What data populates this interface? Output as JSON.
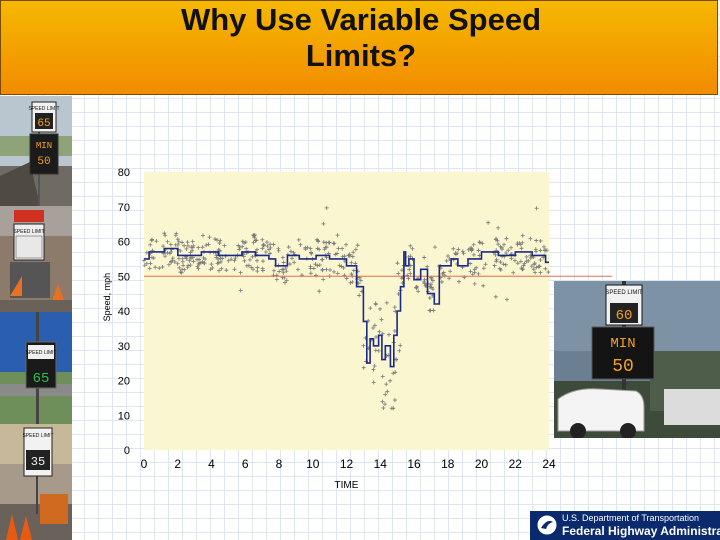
{
  "slide": {
    "title_line1": "Why Use Variable Speed",
    "title_line2": "Limits?"
  },
  "photos": {
    "sign1_top": "SPEED LIMIT",
    "sign1_speed": "65",
    "sign1_min_label": "MIN",
    "sign1_min": "50",
    "sign2_top": "SPEED LIMIT",
    "sign3_top": "SPEED LIMIT",
    "sign3_speed": "65",
    "sign4_top": "SPEED LIMIT",
    "sign4_speed": "35",
    "right_top": "SPEED LIMIT",
    "right_speed": "60",
    "right_min_label": "MIN",
    "right_min": "50"
  },
  "footer": {
    "line1": "U.S. Department of Transportation",
    "line2": "Federal Highway Administration"
  },
  "chart_data": {
    "type": "scatter",
    "title": "",
    "xlabel": "TIME",
    "ylabel": "Speed, mph",
    "xlim": [
      0,
      24
    ],
    "ylim": [
      0,
      80
    ],
    "xticks": [
      0,
      2,
      4,
      6,
      8,
      10,
      12,
      14,
      16,
      18,
      20,
      22,
      24
    ],
    "yticks": [
      0,
      10,
      20,
      30,
      40,
      50,
      60,
      70,
      80
    ],
    "grid": false,
    "reference_line": {
      "y": 50,
      "color": "#e07050"
    },
    "colors": {
      "plot_bg": "#faf6d0",
      "points": "#777777",
      "line": "#1a2a8a"
    },
    "series": [
      {
        "type": "line",
        "x": [
          0,
          0.3,
          0.3,
          1.2,
          1.2,
          2.0,
          2.0,
          3.4,
          3.4,
          4.4,
          4.4,
          5.8,
          5.8,
          6.6,
          6.6,
          7.4,
          7.4,
          7.8,
          7.8,
          8.5,
          8.5,
          9.2,
          9.2,
          10.2,
          10.2,
          11.0,
          11.0,
          12.0,
          12.0,
          12.6,
          12.6,
          13.0,
          13.0,
          13.2,
          13.2,
          13.4,
          13.4,
          13.6,
          13.6,
          13.9,
          13.9,
          14.1,
          14.1,
          14.3,
          14.3,
          14.6,
          14.6,
          14.8,
          14.8,
          15.0,
          15.0,
          15.2,
          15.2,
          15.4,
          15.4,
          15.5,
          15.5,
          15.7,
          15.7,
          16.0,
          16.0,
          16.4,
          16.4,
          16.8,
          16.8,
          17.2,
          17.2,
          17.5,
          17.5,
          18.2,
          18.2,
          18.6,
          18.6,
          19.2,
          19.2,
          20.0,
          20.0,
          21.0,
          21.0,
          22.0,
          22.0,
          23.0,
          23.0,
          23.8,
          23.8,
          24.0
        ],
        "y": [
          55,
          55,
          57,
          57,
          58,
          58,
          56,
          56,
          57,
          57,
          56,
          56,
          57,
          57,
          56,
          56,
          55,
          55,
          53,
          53,
          56,
          56,
          55,
          55,
          56,
          56,
          55,
          55,
          53,
          53,
          47,
          47,
          37,
          37,
          25,
          25,
          32,
          32,
          30,
          30,
          33,
          33,
          26,
          26,
          30,
          30,
          24,
          24,
          33,
          33,
          40,
          40,
          47,
          47,
          57,
          57,
          53,
          53,
          55,
          55,
          49,
          49,
          52,
          52,
          45,
          45,
          42,
          42,
          53,
          53,
          55,
          55,
          53,
          53,
          55,
          55,
          57,
          57,
          56,
          56,
          57,
          57,
          56,
          56,
          54,
          54
        ]
      }
    ],
    "scatter_summary": "Individual vehicle speeds scattered around the line, mostly 50–62 mph, dropping to 15–40 mph between about 12.5 and 16 hours"
  }
}
